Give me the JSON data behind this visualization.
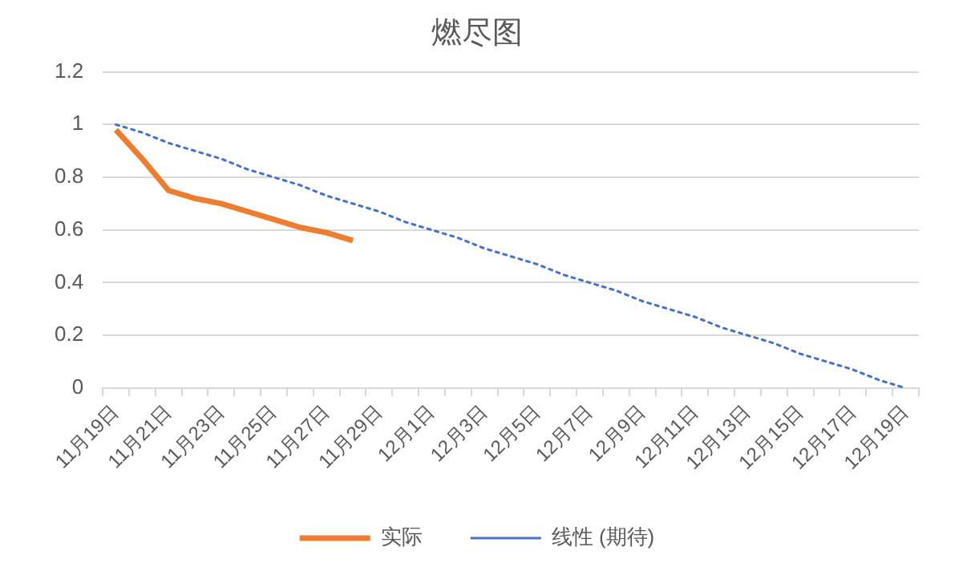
{
  "chart_data": {
    "type": "line",
    "title": "燃尽图",
    "categories": [
      "11月19日",
      null,
      "11月21日",
      null,
      "11月23日",
      null,
      "11月25日",
      null,
      "11月27日",
      null,
      "11月29日",
      null,
      "12月1日",
      null,
      "12月3日",
      null,
      "12月5日",
      null,
      "12月7日",
      null,
      "12月9日",
      null,
      "12月11日",
      null,
      "12月13日",
      null,
      "12月15日",
      null,
      "12月17日",
      null,
      "12月19日"
    ],
    "series": [
      {
        "name": "实际",
        "color": "#ed7d31",
        "line_style": "solid",
        "values": [
          0.98,
          0.87,
          0.75,
          0.72,
          0.7,
          0.67,
          0.64,
          0.61,
          0.59,
          0.56,
          null,
          null,
          null,
          null,
          null,
          null,
          null,
          null,
          null,
          null,
          null,
          null,
          null,
          null,
          null,
          null,
          null,
          null,
          null,
          null,
          null
        ]
      },
      {
        "name": "线性 (期待)",
        "color": "#4472c4",
        "line_style": "dotted",
        "values": [
          1,
          0.97,
          0.93,
          0.9,
          0.87,
          0.83,
          0.8,
          0.77,
          0.73,
          0.7,
          0.67,
          0.63,
          0.6,
          0.57,
          0.53,
          0.5,
          0.47,
          0.43,
          0.4,
          0.37,
          0.33,
          0.3,
          0.27,
          0.23,
          0.2,
          0.17,
          0.13,
          0.1,
          0.07,
          0.03,
          0
        ]
      }
    ],
    "ylim": [
      0,
      1.2
    ],
    "yticks": [
      0,
      0.2,
      0.4,
      0.6,
      0.8,
      1,
      1.2
    ],
    "grid": "y",
    "legend": "bottom",
    "marker": "none"
  }
}
